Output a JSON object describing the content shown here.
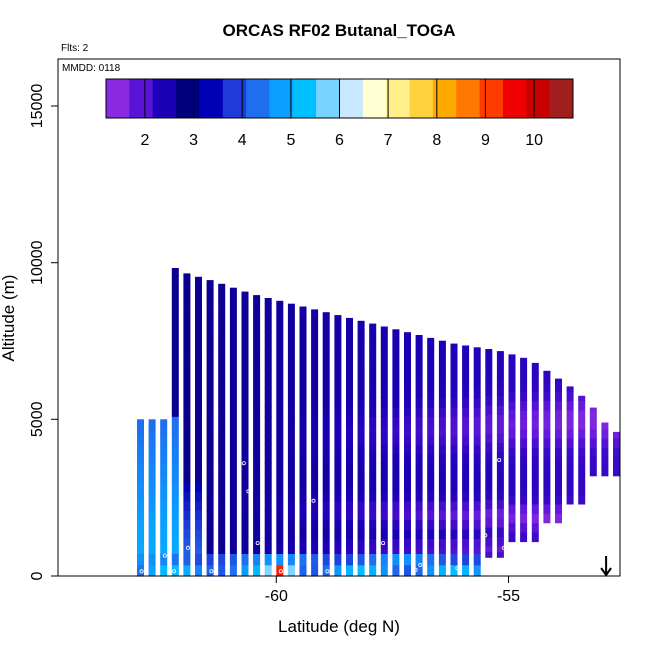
{
  "chart_data": {
    "type": "heatmap",
    "title": "ORCAS RF02 Butanal_TOGA",
    "flts_label": "Flts: 2",
    "mmdd_label": "MMDD: 0118",
    "xlabel": "Latitude (deg N)",
    "ylabel": "Altitude (m)",
    "xlim": [
      -64.7,
      -52.6
    ],
    "ylim": [
      0,
      16500
    ],
    "xticks": [
      -60,
      -55
    ],
    "xtick_labels": [
      "-60",
      "-55"
    ],
    "yticks": [
      0,
      5000,
      10000,
      15000
    ],
    "ytick_labels": [
      "0",
      "5000",
      "10000",
      "15000"
    ],
    "colorbar": {
      "vmin": 1.2,
      "vmax": 10.8,
      "ticks": [
        2,
        3,
        4,
        5,
        6,
        7,
        8,
        9,
        10
      ],
      "tick_labels": [
        "2",
        "3",
        "4",
        "5",
        "6",
        "7",
        "8",
        "9",
        "10"
      ],
      "colors": [
        "#8a2be2",
        "#5a14d8",
        "#1c00b8",
        "#00007a",
        "#0000b4",
        "#1e3ad8",
        "#1e6ef0",
        "#0aa0ff",
        "#00c0ff",
        "#7ad2ff",
        "#c8e8ff",
        "#ffffd2",
        "#fff08c",
        "#ffd23c",
        "#ffaa00",
        "#ff7800",
        "#ff3c00",
        "#f00000",
        "#c80000",
        "#a01e1e"
      ]
    },
    "legend_position": "top",
    "grid": false,
    "marker": {
      "latitude": -52.9,
      "altitude": 0,
      "symbol": "down-arrow"
    },
    "sample_points": [
      {
        "lat": -62.3,
        "alt": 9800
      },
      {
        "lat": -54.8,
        "alt": 7100
      },
      {
        "lat": -53.6,
        "alt": 6300
      },
      {
        "lat": -60.7,
        "alt": 3600
      },
      {
        "lat": -55.2,
        "alt": 3700
      },
      {
        "lat": -60.6,
        "alt": 2700
      },
      {
        "lat": -59.2,
        "alt": 2400
      },
      {
        "lat": -53.2,
        "alt": 2950
      },
      {
        "lat": -61.9,
        "alt": 900
      },
      {
        "lat": -61.3,
        "alt": 950
      },
      {
        "lat": -60.4,
        "alt": 1050
      },
      {
        "lat": -57.7,
        "alt": 1050
      },
      {
        "lat": -55.5,
        "alt": 1300
      },
      {
        "lat": -56.3,
        "alt": 1200
      },
      {
        "lat": -55.1,
        "alt": 900
      },
      {
        "lat": -62.4,
        "alt": 650
      },
      {
        "lat": -58.8,
        "alt": 650
      },
      {
        "lat": -55.5,
        "alt": 450
      },
      {
        "lat": -56.9,
        "alt": 350
      },
      {
        "lat": -62.9,
        "alt": 150
      },
      {
        "lat": -62.2,
        "alt": 150
      },
      {
        "lat": -61.4,
        "alt": 150
      },
      {
        "lat": -60.8,
        "alt": 200
      },
      {
        "lat": -59.9,
        "alt": 150
      },
      {
        "lat": -58.9,
        "alt": 150
      },
      {
        "lat": -57.0,
        "alt": 200
      },
      {
        "lat": -56.1,
        "alt": 250
      },
      {
        "lat": -55.3,
        "alt": 120
      },
      {
        "lat": -54.9,
        "alt": 120
      }
    ]
  }
}
